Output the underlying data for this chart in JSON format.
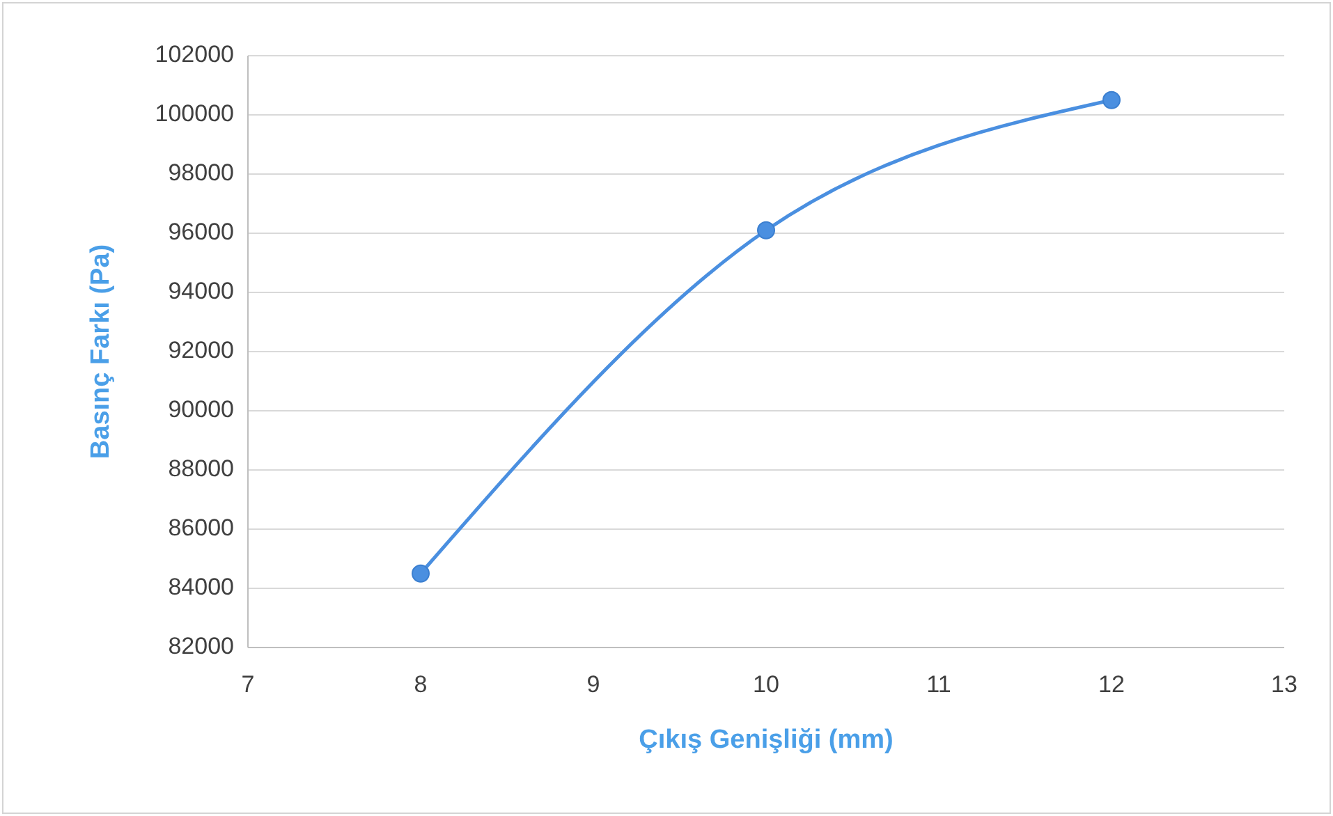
{
  "chart_data": {
    "type": "line",
    "xlabel": "Çıkış Genişliği (mm)",
    "ylabel": "Basınç Farkı (Pa)",
    "x": [
      8,
      10,
      12
    ],
    "series": [
      {
        "color": "#4a8fe0",
        "values": [
          84500,
          96100,
          100500
        ]
      }
    ],
    "xlim": [
      7,
      13
    ],
    "xticks": [
      7,
      8,
      9,
      10,
      11,
      12,
      13
    ],
    "ylim": [
      82000,
      102000
    ],
    "yticks": [
      82000,
      84000,
      86000,
      88000,
      90000,
      92000,
      94000,
      96000,
      98000,
      100000,
      102000
    ],
    "grid": "y",
    "marker": "circle",
    "line_style": "solid"
  }
}
